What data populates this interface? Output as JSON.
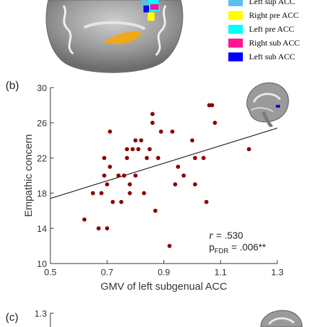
{
  "legend": [
    {
      "label": "Left sup ACC",
      "color": "#5bbfef"
    },
    {
      "label": "Right pre ACC",
      "color": "#ffff00"
    },
    {
      "label": "Left pre ACC",
      "color": "#00ffff"
    },
    {
      "label": "Right sub ACC",
      "color": "#ff1493"
    },
    {
      "label": "Left sub ACC",
      "color": "#0000ff"
    }
  ],
  "panel_b_label": "(b)",
  "panel_c_label": "(c)",
  "stats": {
    "r_symbol": "r",
    "r_value": "= .530",
    "p_symbol": "p",
    "p_subscript": "FDR",
    "p_value": "= .006**"
  },
  "chart_c": {
    "first_tick": "1.3"
  },
  "chart_data": {
    "type": "scatter",
    "xlabel": "GMV of left subgenual ACC",
    "ylabel": "Empathic concern",
    "xlim": [
      0.5,
      1.3
    ],
    "ylim": [
      10,
      30
    ],
    "xticks": [
      "0.5",
      "0.7",
      "0.9",
      "1.1",
      "1.3"
    ],
    "yticks": [
      "10",
      "14",
      "18",
      "22",
      "26",
      "30"
    ],
    "marker_color": "#8b0000",
    "fit_line": {
      "x": [
        0.5,
        1.3
      ],
      "y": [
        17.4,
        25.4
      ]
    },
    "points": [
      {
        "x": 0.62,
        "y": 15
      },
      {
        "x": 0.65,
        "y": 18
      },
      {
        "x": 0.67,
        "y": 14
      },
      {
        "x": 0.68,
        "y": 18
      },
      {
        "x": 0.69,
        "y": 22
      },
      {
        "x": 0.69,
        "y": 20
      },
      {
        "x": 0.7,
        "y": 14
      },
      {
        "x": 0.7,
        "y": 19
      },
      {
        "x": 0.71,
        "y": 25
      },
      {
        "x": 0.71,
        "y": 21
      },
      {
        "x": 0.72,
        "y": 17
      },
      {
        "x": 0.74,
        "y": 20
      },
      {
        "x": 0.75,
        "y": 17
      },
      {
        "x": 0.76,
        "y": 20
      },
      {
        "x": 0.77,
        "y": 22
      },
      {
        "x": 0.77,
        "y": 23
      },
      {
        "x": 0.78,
        "y": 19
      },
      {
        "x": 0.78,
        "y": 18
      },
      {
        "x": 0.79,
        "y": 23
      },
      {
        "x": 0.8,
        "y": 24
      },
      {
        "x": 0.8,
        "y": 20
      },
      {
        "x": 0.81,
        "y": 23
      },
      {
        "x": 0.82,
        "y": 24
      },
      {
        "x": 0.83,
        "y": 18
      },
      {
        "x": 0.84,
        "y": 22
      },
      {
        "x": 0.85,
        "y": 23
      },
      {
        "x": 0.86,
        "y": 27
      },
      {
        "x": 0.86,
        "y": 26
      },
      {
        "x": 0.87,
        "y": 16
      },
      {
        "x": 0.88,
        "y": 22
      },
      {
        "x": 0.89,
        "y": 25
      },
      {
        "x": 0.92,
        "y": 12
      },
      {
        "x": 0.93,
        "y": 25
      },
      {
        "x": 0.94,
        "y": 19
      },
      {
        "x": 0.95,
        "y": 21
      },
      {
        "x": 0.97,
        "y": 20
      },
      {
        "x": 1.0,
        "y": 24
      },
      {
        "x": 1.01,
        "y": 19
      },
      {
        "x": 1.01,
        "y": 22
      },
      {
        "x": 1.04,
        "y": 22
      },
      {
        "x": 1.05,
        "y": 17
      },
      {
        "x": 1.06,
        "y": 28
      },
      {
        "x": 1.07,
        "y": 28
      },
      {
        "x": 1.08,
        "y": 26
      },
      {
        "x": 1.2,
        "y": 23
      }
    ]
  }
}
